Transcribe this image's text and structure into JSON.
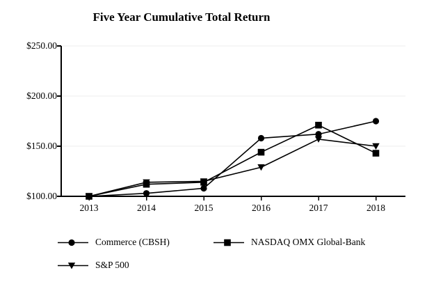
{
  "chart_data": {
    "type": "line",
    "title": "Five Year Cumulative Total Return",
    "x_labels": [
      "2013",
      "2014",
      "2015",
      "2016",
      "2017",
      "2018"
    ],
    "ylim": [
      100,
      250
    ],
    "y_ticks": [
      {
        "value": 250,
        "label": "$250.00"
      },
      {
        "value": 200,
        "label": "$200.00"
      },
      {
        "value": 150,
        "label": "$150.00"
      },
      {
        "value": 100,
        "label": "$100.00"
      }
    ],
    "series": [
      {
        "name": "Commerce (CBSH)",
        "marker": "circle",
        "values": [
          100,
          103,
          108,
          158,
          162,
          175
        ]
      },
      {
        "name": "NASDAQ OMX Global-Bank",
        "marker": "square",
        "values": [
          100,
          112,
          114,
          144,
          171,
          143
        ]
      },
      {
        "name": "S&P 500",
        "marker": "triangle-down",
        "values": [
          100,
          114,
          115,
          129,
          157,
          150
        ]
      }
    ],
    "draw_order": [
      2,
      0,
      1
    ],
    "grid": "horizontal",
    "legend_position": "below-plot-left",
    "colors": {
      "foreground": "#000000",
      "gridline": "#ededed",
      "background": "#ffffff"
    }
  }
}
